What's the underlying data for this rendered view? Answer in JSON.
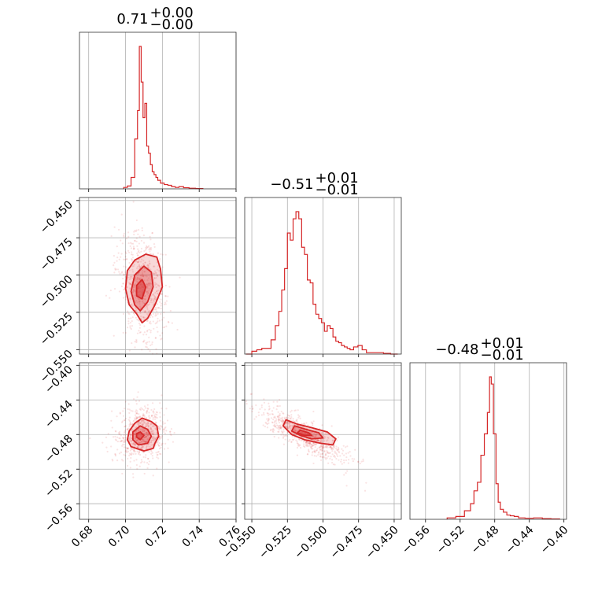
{
  "chart_data": {
    "type": "corner",
    "color": "#d62728",
    "grid": true,
    "diagonal": [
      {
        "title": {
          "value": "0.71",
          "plus": "+0.00",
          "minus": "−0.00"
        },
        "xlim": [
          0.675,
          0.76
        ],
        "xticks": [
          0.68,
          0.7,
          0.72,
          0.74,
          0.76
        ],
        "xticklabels": [
          "0.68",
          "0.70",
          "0.72",
          "0.74",
          "0.76"
        ],
        "hist": {
          "x": [
            0.7,
            0.702,
            0.704,
            0.706,
            0.707,
            0.708,
            0.709,
            0.71,
            0.711,
            0.712,
            0.713,
            0.714,
            0.715,
            0.716,
            0.717,
            0.718,
            0.72,
            0.722,
            0.724,
            0.726,
            0.728,
            0.73,
            0.733,
            0.736,
            0.74
          ],
          "y": [
            0.01,
            0.02,
            0.08,
            0.35,
            0.55,
            1.0,
            0.75,
            0.5,
            0.6,
            0.3,
            0.25,
            0.17,
            0.12,
            0.1,
            0.08,
            0.06,
            0.04,
            0.03,
            0.025,
            0.015,
            0.01,
            0.015,
            0.008,
            0.004,
            0.002
          ]
        }
      },
      {
        "title": {
          "value": "−0.51",
          "plus": "+0.01",
          "minus": "−0.01"
        },
        "xlim": [
          -0.555,
          -0.445
        ],
        "xticks": [
          -0.55,
          -0.525,
          -0.5,
          -0.475,
          -0.45
        ],
        "xticklabels": [
          "−0.550",
          "−0.525",
          "−0.500",
          "−0.475",
          "−0.450"
        ],
        "hist": {
          "x": [
            -0.552,
            -0.548,
            -0.545,
            -0.541,
            -0.538,
            -0.535,
            -0.532,
            -0.53,
            -0.528,
            -0.526,
            -0.524,
            -0.522,
            -0.52,
            -0.518,
            -0.516,
            -0.514,
            -0.512,
            -0.51,
            -0.508,
            -0.506,
            -0.504,
            -0.502,
            -0.5,
            -0.498,
            -0.496,
            -0.494,
            -0.492,
            -0.49,
            -0.488,
            -0.486,
            -0.484,
            -0.482,
            -0.48,
            -0.477,
            -0.474,
            -0.471,
            -0.468,
            -0.464,
            -0.46,
            -0.455,
            -0.45
          ],
          "y": [
            0.0,
            0.02,
            0.03,
            0.04,
            0.04,
            0.1,
            0.2,
            0.3,
            0.45,
            0.6,
            0.85,
            0.8,
            0.95,
            1.0,
            0.95,
            0.75,
            0.7,
            0.52,
            0.5,
            0.35,
            0.28,
            0.25,
            0.22,
            0.16,
            0.2,
            0.18,
            0.12,
            0.09,
            0.08,
            0.06,
            0.05,
            0.04,
            0.03,
            0.05,
            0.06,
            0.03,
            0.01,
            0.01,
            0.01,
            0.005,
            0.0
          ]
        }
      },
      {
        "title": {
          "value": "−0.48",
          "plus": "+0.01",
          "minus": "−0.01"
        },
        "xlim": [
          -0.578,
          -0.397
        ],
        "xticks": [
          -0.56,
          -0.52,
          -0.48,
          -0.44,
          -0.4
        ],
        "xticklabels": [
          "−0.56",
          "−0.52",
          "−0.48",
          "−0.44",
          "−0.40"
        ],
        "hist": {
          "x": [
            -0.53,
            -0.52,
            -0.51,
            -0.506,
            -0.502,
            -0.498,
            -0.494,
            -0.49,
            -0.487,
            -0.485,
            -0.483,
            -0.48,
            -0.477,
            -0.475,
            -0.472,
            -0.468,
            -0.464,
            -0.46,
            -0.455,
            -0.45,
            -0.44,
            -0.43,
            -0.42,
            -0.41
          ],
          "y": [
            0.01,
            0.02,
            0.06,
            0.11,
            0.2,
            0.26,
            0.45,
            0.6,
            0.75,
            1.0,
            0.95,
            0.6,
            0.25,
            0.12,
            0.07,
            0.05,
            0.03,
            0.025,
            0.02,
            0.01,
            0.008,
            0.01,
            0.005,
            0.003
          ]
        }
      }
    ],
    "pairs": [
      {
        "row": 1,
        "col": 0,
        "xlim": [
          0.675,
          0.76
        ],
        "ylim": [
          -0.553,
          -0.448
        ],
        "yticks": [
          -0.45,
          -0.475,
          -0.5,
          -0.525,
          -0.55
        ],
        "yticklabels": [
          "−0.450",
          "−0.475",
          "−0.500",
          "−0.525",
          "−0.550"
        ],
        "center": [
          0.709,
          -0.508
        ],
        "spread": [
          0.005,
          0.015
        ],
        "rho": -0.3,
        "contours": [
          [
            [
              0.711,
              -0.486
            ],
            [
              0.717,
              -0.488
            ],
            [
              0.719,
              -0.496
            ],
            [
              0.72,
              -0.508
            ],
            [
              0.716,
              -0.52
            ],
            [
              0.712,
              -0.529
            ],
            [
              0.709,
              -0.532
            ],
            [
              0.706,
              -0.526
            ],
            [
              0.702,
              -0.52
            ],
            [
              0.7,
              -0.509
            ],
            [
              0.701,
              -0.497
            ],
            [
              0.705,
              -0.49
            ]
          ],
          [
            [
              0.71,
              -0.494
            ],
            [
              0.714,
              -0.498
            ],
            [
              0.715,
              -0.508
            ],
            [
              0.712,
              -0.518
            ],
            [
              0.708,
              -0.524
            ],
            [
              0.705,
              -0.52
            ],
            [
              0.703,
              -0.511
            ],
            [
              0.705,
              -0.5
            ]
          ],
          [
            [
              0.709,
              -0.503
            ],
            [
              0.711,
              -0.508
            ],
            [
              0.709,
              -0.516
            ],
            [
              0.706,
              -0.514
            ],
            [
              0.706,
              -0.507
            ]
          ]
        ]
      },
      {
        "row": 2,
        "col": 0,
        "xlim": [
          0.675,
          0.76
        ],
        "ylim": [
          -0.578,
          -0.397
        ],
        "yticks": [
          -0.4,
          -0.44,
          -0.48,
          -0.52,
          -0.56
        ],
        "yticklabels": [
          "−0.40",
          "−0.44",
          "−0.48",
          "−0.52",
          "−0.56"
        ],
        "center": [
          0.709,
          -0.481
        ],
        "spread": [
          0.005,
          0.012
        ],
        "rho": 0.1,
        "contours": [
          [
            [
              0.709,
              -0.461
            ],
            [
              0.714,
              -0.465
            ],
            [
              0.717,
              -0.47
            ],
            [
              0.718,
              -0.482
            ],
            [
              0.716,
              -0.49
            ],
            [
              0.715,
              -0.496
            ],
            [
              0.71,
              -0.499
            ],
            [
              0.703,
              -0.494
            ],
            [
              0.701,
              -0.486
            ],
            [
              0.702,
              -0.476
            ],
            [
              0.705,
              -0.467
            ]
          ],
          [
            [
              0.708,
              -0.47
            ],
            [
              0.712,
              -0.474
            ],
            [
              0.714,
              -0.482
            ],
            [
              0.712,
              -0.49
            ],
            [
              0.707,
              -0.492
            ],
            [
              0.704,
              -0.486
            ],
            [
              0.704,
              -0.477
            ]
          ],
          [
            [
              0.708,
              -0.477
            ],
            [
              0.71,
              -0.481
            ],
            [
              0.708,
              -0.486
            ],
            [
              0.706,
              -0.483
            ],
            [
              0.706,
              -0.479
            ]
          ]
        ]
      },
      {
        "row": 2,
        "col": 1,
        "xlim": [
          -0.555,
          -0.445
        ],
        "ylim": [
          -0.578,
          -0.397
        ],
        "center": [
          -0.513,
          -0.481
        ],
        "spread": [
          0.012,
          0.012
        ],
        "rho": -0.85,
        "contours": [
          [
            [
              -0.526,
              -0.463
            ],
            [
              -0.518,
              -0.468
            ],
            [
              -0.508,
              -0.472
            ],
            [
              -0.497,
              -0.477
            ],
            [
              -0.491,
              -0.485
            ],
            [
              -0.493,
              -0.492
            ],
            [
              -0.502,
              -0.49
            ],
            [
              -0.513,
              -0.486
            ],
            [
              -0.522,
              -0.48
            ],
            [
              -0.528,
              -0.47
            ]
          ],
          [
            [
              -0.52,
              -0.47
            ],
            [
              -0.512,
              -0.474
            ],
            [
              -0.503,
              -0.478
            ],
            [
              -0.5,
              -0.484
            ],
            [
              -0.508,
              -0.485
            ],
            [
              -0.516,
              -0.481
            ],
            [
              -0.522,
              -0.476
            ]
          ],
          [
            [
              -0.516,
              -0.475
            ],
            [
              -0.51,
              -0.478
            ],
            [
              -0.508,
              -0.481
            ],
            [
              -0.513,
              -0.481
            ],
            [
              -0.518,
              -0.478
            ]
          ]
        ]
      }
    ]
  }
}
